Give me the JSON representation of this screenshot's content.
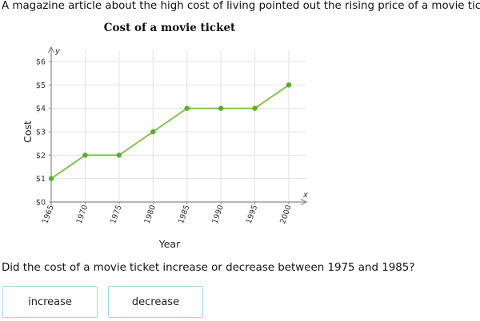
{
  "prompt": "A magazine article about the high cost of living pointed out the rising price of a movie ticket.",
  "question": "Did the cost of a movie ticket increase or decrease between 1975 and 1985?",
  "answers": [
    {
      "label": "increase"
    },
    {
      "label": "decrease"
    }
  ],
  "colors": {
    "line": "#7ac043",
    "point": "#5aae2a",
    "grid": "#e2e2e2",
    "axis": "#8a8a8a",
    "button_border": "#9fd9ea"
  },
  "chart_data": {
    "type": "line",
    "title": "Cost of a movie ticket",
    "xlabel": "Year",
    "ylabel": "Cost",
    "x_axis_letter": "x",
    "y_axis_letter": "y",
    "x": [
      1965,
      1970,
      1975,
      1980,
      1985,
      1990,
      1995,
      2000
    ],
    "x_tick_labels": [
      "1965",
      "1970",
      "1975",
      "1980",
      "1985",
      "1990",
      "1995",
      "2000"
    ],
    "values": [
      1,
      2,
      2,
      3,
      4,
      4,
      4,
      5
    ],
    "y_ticks": [
      0,
      1,
      2,
      3,
      4,
      5,
      6
    ],
    "y_tick_labels": [
      "$0",
      "$1",
      "$2",
      "$3",
      "$4",
      "$5",
      "$6"
    ],
    "ylim": [
      0,
      6
    ],
    "xlim": [
      1965,
      2000
    ],
    "grid": true,
    "legend": "none"
  }
}
